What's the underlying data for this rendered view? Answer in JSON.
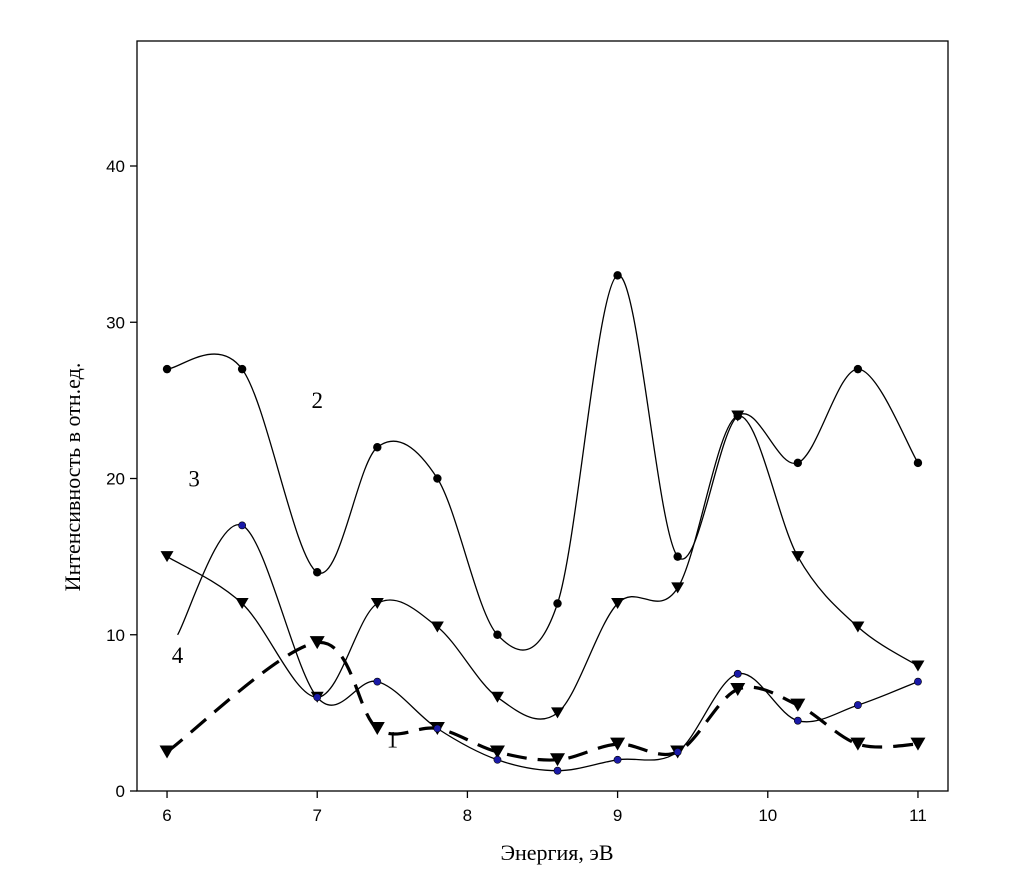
{
  "chart_data": {
    "type": "line",
    "title": "",
    "xlabel": "Энергия, эВ",
    "ylabel": "Интенсивность в отн.ед.",
    "xlim": [
      5.8,
      11.2
    ],
    "ylim": [
      0,
      48
    ],
    "xticks": [
      "6",
      "7",
      "8",
      "9",
      "10",
      "11"
    ],
    "yticks": [
      "0",
      "10",
      "20",
      "30",
      "40"
    ],
    "grid": false,
    "legend": "none",
    "series": [
      {
        "label": "1",
        "marker": "triangle-down",
        "style": "dashed",
        "color": "#000000",
        "x": [
          6.0,
          7.0,
          7.4,
          7.8,
          8.2,
          8.6,
          9.0,
          9.4,
          9.8,
          10.2,
          10.6,
          11.0
        ],
        "y": [
          2.5,
          9.5,
          4.0,
          4.0,
          2.5,
          2.0,
          3.0,
          2.5,
          6.5,
          5.5,
          3.0,
          3.0
        ]
      },
      {
        "label": "2",
        "marker": "circle",
        "style": "solid",
        "color": "#000000",
        "x": [
          6.0,
          6.5,
          7.0,
          7.4,
          7.8,
          8.2,
          8.6,
          9.0,
          9.4,
          9.8,
          10.2,
          10.6,
          11.0
        ],
        "y": [
          27,
          27,
          14,
          22,
          20,
          10,
          12,
          33,
          15,
          24,
          21,
          27,
          21
        ]
      },
      {
        "label": "3",
        "marker": "triangle-down",
        "style": "solid",
        "color": "#000000",
        "x": [
          6.0,
          6.5,
          7.0,
          7.4,
          7.8,
          8.2,
          8.6,
          9.0,
          9.4,
          9.8,
          10.2,
          10.6,
          11.0
        ],
        "y": [
          15,
          12,
          6,
          12,
          10.5,
          6,
          5,
          12,
          13,
          24,
          15,
          10.5,
          8
        ]
      },
      {
        "label": "4",
        "marker": "circle-blue",
        "style": "solid",
        "color": "#000000",
        "marker_color": "#1a1aa8",
        "x": [
          6.07,
          6.5,
          7.0,
          7.4,
          7.8,
          8.2,
          8.6,
          9.0,
          9.4,
          9.8,
          10.2,
          10.6,
          11.0
        ],
        "y": [
          10,
          17,
          6,
          7,
          4,
          2,
          1.3,
          2,
          2.5,
          7.5,
          4.5,
          5.5,
          7
        ],
        "marker_from": 1
      }
    ],
    "curve_labels": [
      {
        "text": "2",
        "x": 7.0,
        "y": 24.5
      },
      {
        "text": "3",
        "x": 6.18,
        "y": 19.5
      },
      {
        "text": "4",
        "x": 6.07,
        "y": 8.2
      },
      {
        "text": "1",
        "x": 7.5,
        "y": 2.8
      }
    ]
  }
}
